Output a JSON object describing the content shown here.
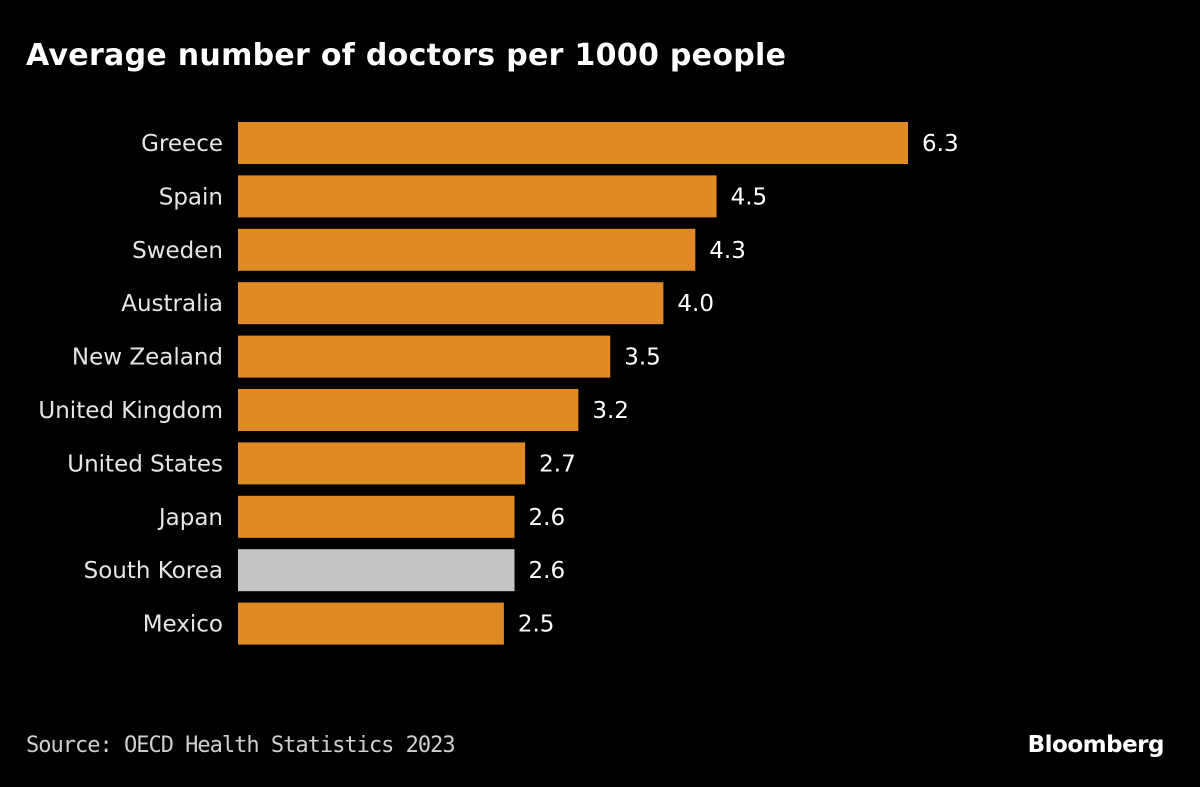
{
  "chart_data": {
    "type": "bar",
    "orientation": "horizontal",
    "title": "Average number of doctors per 1000 people",
    "categories": [
      "Greece",
      "Spain",
      "Sweden",
      "Australia",
      "New Zealand",
      "United Kingdom",
      "United States",
      "Japan",
      "South Korea",
      "Mexico"
    ],
    "values": [
      6.3,
      4.5,
      4.3,
      4.0,
      3.5,
      3.2,
      2.7,
      2.6,
      2.6,
      2.5
    ],
    "data_labels": [
      "6.3",
      "4.5",
      "4.3",
      "4.0",
      "3.5",
      "3.2",
      "2.7",
      "2.6",
      "2.6",
      "2.5"
    ],
    "highlight": "South Korea",
    "colors": {
      "default": "#e08a26",
      "highlight": "#c4c4c4",
      "background": "#000000",
      "text": "#ffffff"
    },
    "xlim": [
      0,
      6.3
    ],
    "grid": false,
    "source": "Source: OECD Health Statistics 2023"
  },
  "branding": {
    "logo": "Bloomberg"
  }
}
